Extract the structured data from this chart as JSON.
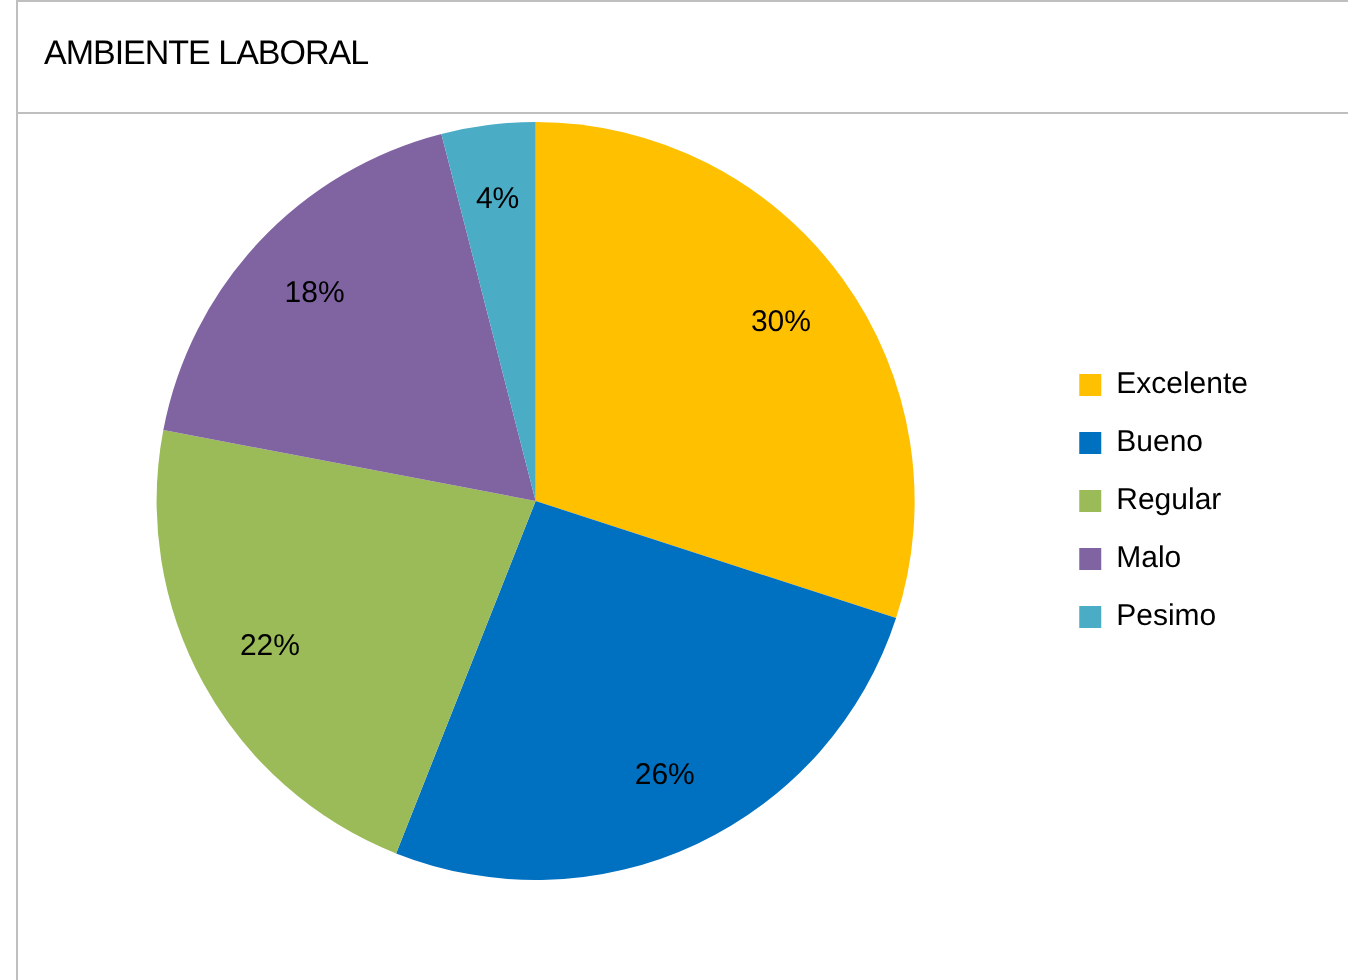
{
  "chart_data": {
    "type": "pie",
    "title": "AMBIENTE LABORAL",
    "categories": [
      "Excelente",
      "Bueno",
      "Regular",
      "Malo",
      "Pesimo"
    ],
    "values": [
      30,
      26,
      22,
      18,
      4
    ],
    "colors": [
      "#ffc000",
      "#0070c0",
      "#9bbb59",
      "#8064a2",
      "#4bacc6"
    ],
    "value_labels": [
      "30%",
      "26%",
      "22%",
      "18%",
      "4%"
    ],
    "legend": "right"
  }
}
